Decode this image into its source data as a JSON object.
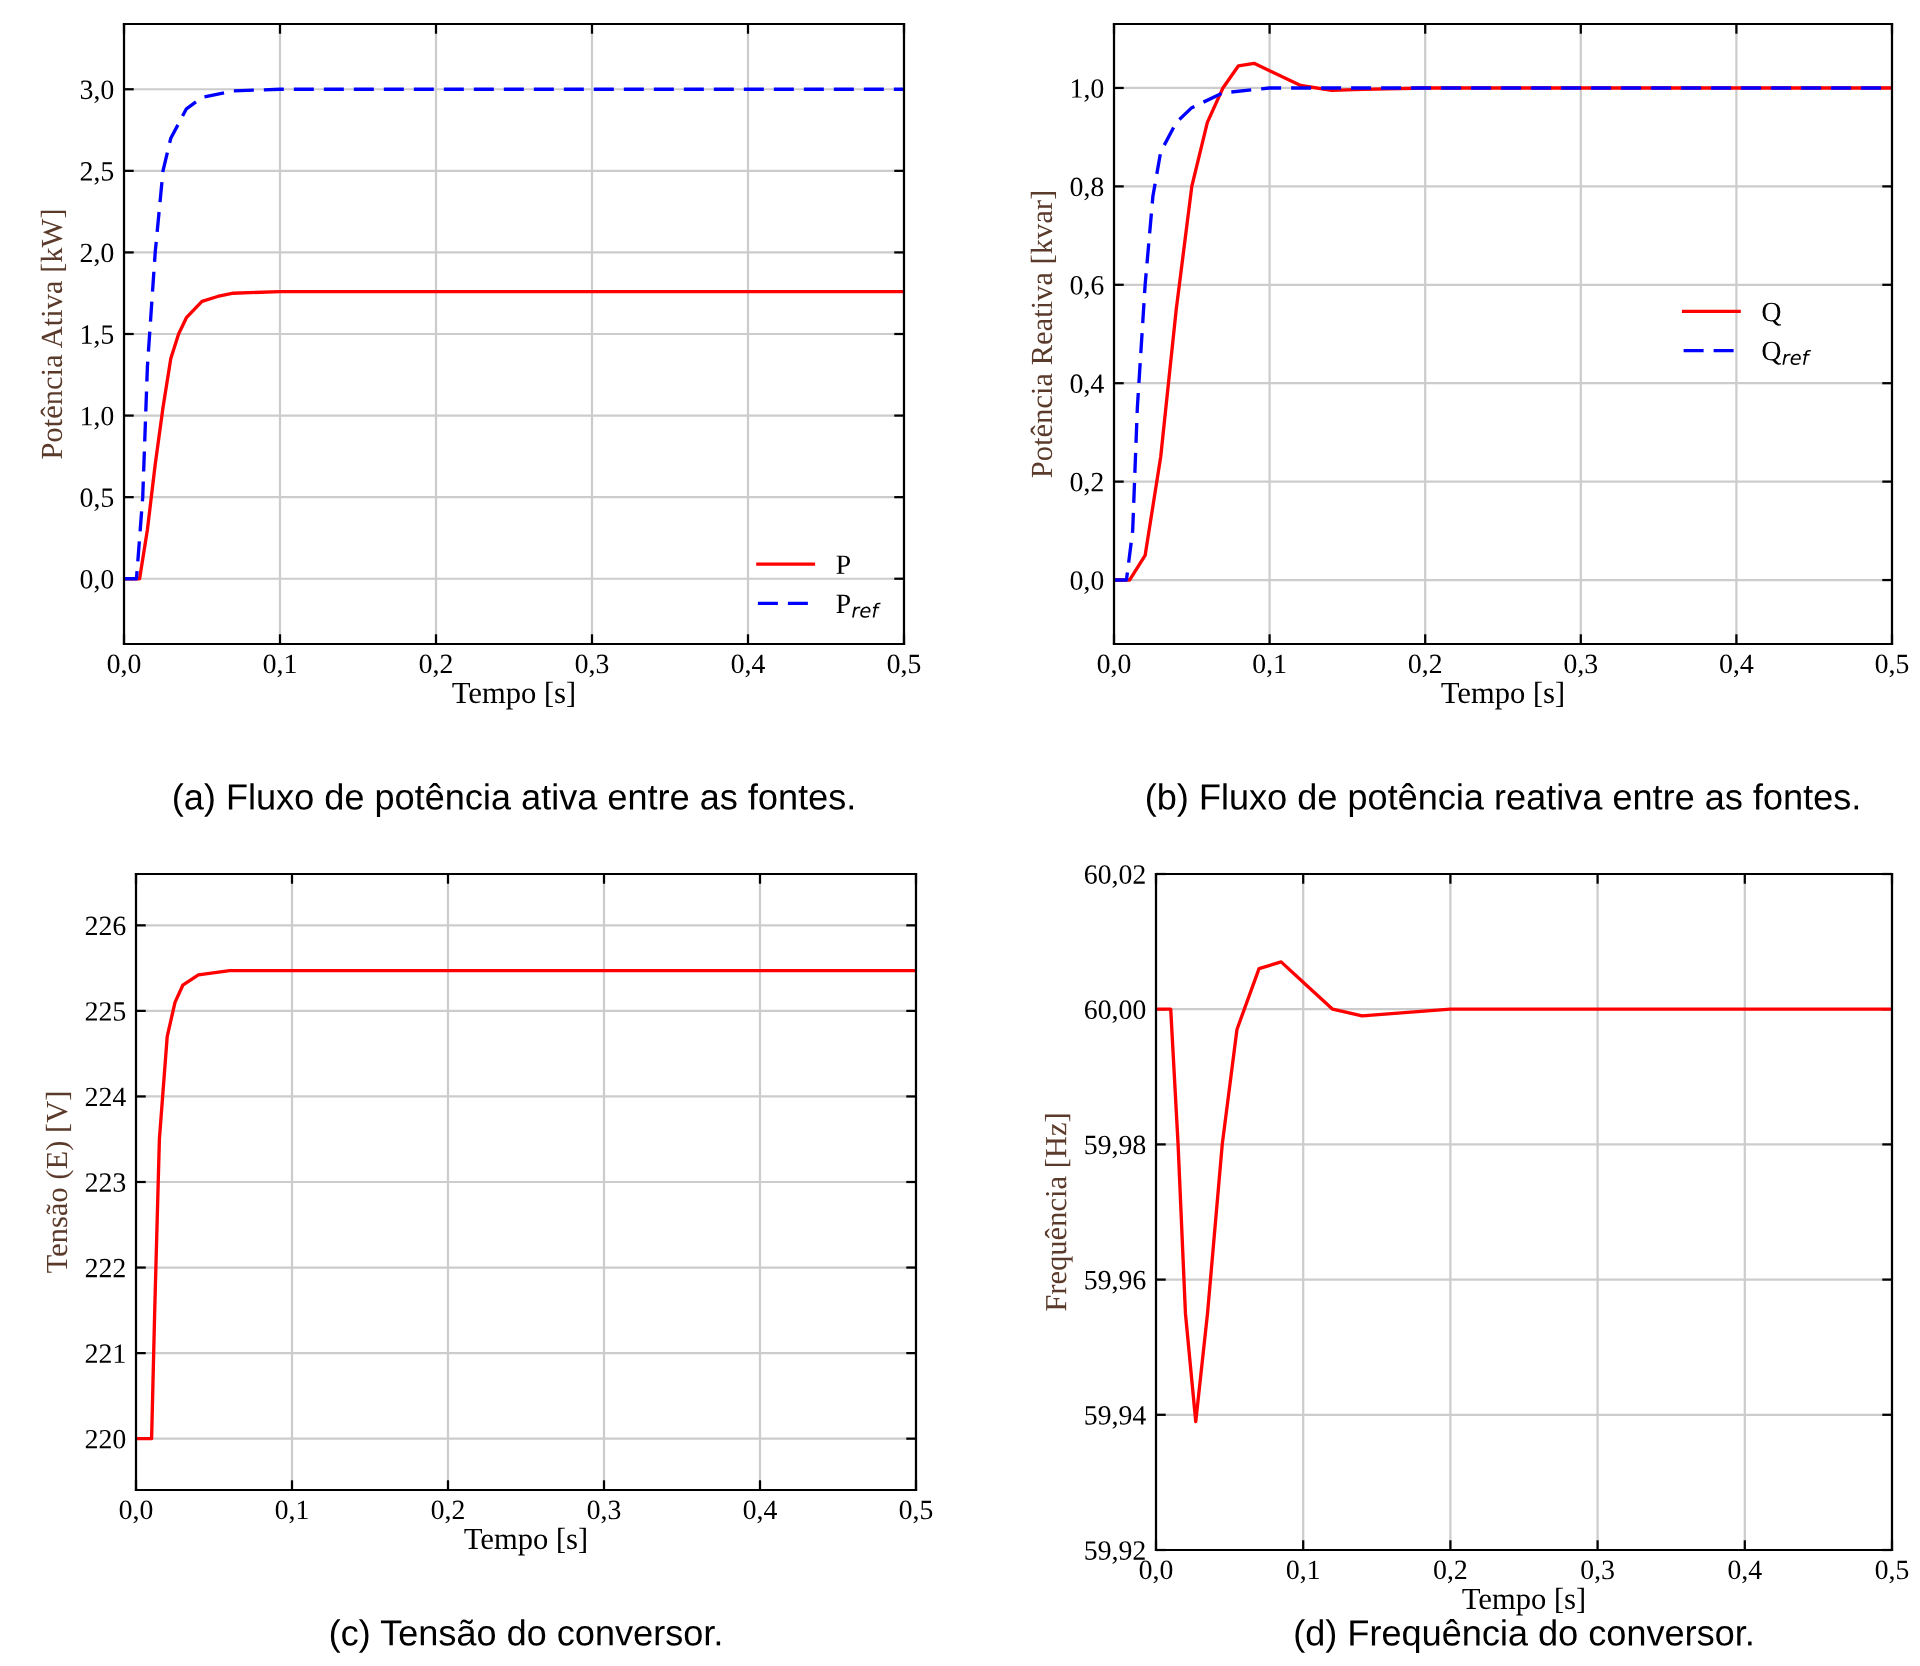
{
  "chart_data": [
    {
      "type": "line",
      "title": "(a) Fluxo de potência ativa entre as fontes.",
      "xlabel": "Tempo [s]",
      "ylabel": "Potência Ativa [kW]",
      "xlim": [
        0,
        0.5
      ],
      "ylim": [
        -0.4,
        3.4
      ],
      "xticks": [
        {
          "value": 0,
          "label": "0,0"
        },
        {
          "value": 0.1,
          "label": "0,1"
        },
        {
          "value": 0.2,
          "label": "0,2"
        },
        {
          "value": 0.3,
          "label": "0,3"
        },
        {
          "value": 0.4,
          "label": "0,4"
        },
        {
          "value": 0.5,
          "label": "0,5"
        }
      ],
      "yticks": [
        {
          "value": 0,
          "label": "0,0"
        },
        {
          "value": 0.5,
          "label": "0,5"
        },
        {
          "value": 1,
          "label": "1,0"
        },
        {
          "value": 1.5,
          "label": "1,5"
        },
        {
          "value": 2,
          "label": "2,0"
        },
        {
          "value": 2.5,
          "label": "2,5"
        },
        {
          "value": 3,
          "label": "3,0"
        }
      ],
      "grid": true,
      "legend": "bottom right",
      "series": [
        {
          "name": "P",
          "color": "#ff0000",
          "line_style": "solid",
          "x": [
            0,
            0.01,
            0.015,
            0.02,
            0.025,
            0.03,
            0.035,
            0.04,
            0.05,
            0.06,
            0.07,
            0.1,
            0.2,
            0.5
          ],
          "values": [
            0,
            0,
            0.3,
            0.7,
            1.05,
            1.35,
            1.5,
            1.6,
            1.7,
            1.73,
            1.75,
            1.76,
            1.76,
            1.76
          ]
        },
        {
          "name": "P$_{ref}$",
          "color": "#0000ff",
          "line_style": "dashed",
          "x": [
            0,
            0.008,
            0.012,
            0.015,
            0.02,
            0.025,
            0.03,
            0.04,
            0.05,
            0.07,
            0.1,
            0.5
          ],
          "values": [
            0,
            0,
            0.5,
            1.3,
            2.0,
            2.5,
            2.7,
            2.88,
            2.95,
            2.99,
            3.0,
            3.0
          ]
        }
      ]
    },
    {
      "type": "line",
      "title": "(b) Fluxo de potência reativa entre as fontes.",
      "xlabel": "Tempo [s]",
      "ylabel": "Potência Reativa [kvar]",
      "xlim": [
        0,
        0.5
      ],
      "ylim": [
        -0.13,
        1.13
      ],
      "xticks": [
        {
          "value": 0,
          "label": "0,0"
        },
        {
          "value": 0.1,
          "label": "0,1"
        },
        {
          "value": 0.2,
          "label": "0,2"
        },
        {
          "value": 0.3,
          "label": "0,3"
        },
        {
          "value": 0.4,
          "label": "0,4"
        },
        {
          "value": 0.5,
          "label": "0,5"
        }
      ],
      "yticks": [
        {
          "value": 0,
          "label": "0,0"
        },
        {
          "value": 0.2,
          "label": "0,2"
        },
        {
          "value": 0.4,
          "label": "0,4"
        },
        {
          "value": 0.6,
          "label": "0,6"
        },
        {
          "value": 0.8,
          "label": "0,8"
        },
        {
          "value": 1,
          "label": "1,0"
        }
      ],
      "grid": true,
      "legend": "center right",
      "series": [
        {
          "name": "Q",
          "color": "#ff0000",
          "line_style": "solid",
          "x": [
            0,
            0.01,
            0.02,
            0.03,
            0.04,
            0.05,
            0.06,
            0.07,
            0.08,
            0.09,
            0.1,
            0.12,
            0.14,
            0.16,
            0.2,
            0.5
          ],
          "values": [
            0,
            0,
            0.05,
            0.25,
            0.55,
            0.8,
            0.93,
            1.0,
            1.045,
            1.05,
            1.035,
            1.005,
            0.995,
            0.997,
            1.0,
            1.0
          ]
        },
        {
          "name": "Q$_{ref}$",
          "color": "#0000ff",
          "line_style": "dashed",
          "x": [
            0,
            0.008,
            0.012,
            0.015,
            0.02,
            0.025,
            0.03,
            0.04,
            0.05,
            0.07,
            0.1,
            0.5
          ],
          "values": [
            0,
            0,
            0.1,
            0.35,
            0.6,
            0.78,
            0.87,
            0.93,
            0.96,
            0.99,
            1.0,
            1.0
          ]
        }
      ]
    },
    {
      "type": "line",
      "title": "(c) Tensão do conversor.",
      "xlabel": "Tempo [s]",
      "ylabel": "Tensão (E) [V]",
      "xlim": [
        0,
        0.5
      ],
      "ylim": [
        219.4,
        226.6
      ],
      "xticks": [
        {
          "value": 0,
          "label": "0,0"
        },
        {
          "value": 0.1,
          "label": "0,1"
        },
        {
          "value": 0.2,
          "label": "0,2"
        },
        {
          "value": 0.3,
          "label": "0,3"
        },
        {
          "value": 0.4,
          "label": "0,4"
        },
        {
          "value": 0.5,
          "label": "0,5"
        }
      ],
      "yticks": [
        220,
        221,
        222,
        223,
        224,
        225,
        226
      ],
      "grid": true,
      "series": [
        {
          "color": "#ff0000",
          "line_style": "solid",
          "x": [
            0,
            0.01,
            0.012,
            0.015,
            0.02,
            0.025,
            0.03,
            0.04,
            0.06,
            0.1,
            0.5
          ],
          "values": [
            220,
            220,
            221.5,
            223.5,
            224.7,
            225.1,
            225.3,
            225.42,
            225.47,
            225.47,
            225.47
          ]
        }
      ]
    },
    {
      "type": "line",
      "title": "(d) Frequência do conversor.",
      "xlabel": "Tempo [s]",
      "ylabel": "Frequência [Hz]",
      "xlim": [
        0,
        0.5
      ],
      "ylim": [
        59.92,
        60.02
      ],
      "xticks": [
        {
          "value": 0,
          "label": "0,0"
        },
        {
          "value": 0.1,
          "label": "0,1"
        },
        {
          "value": 0.2,
          "label": "0,2"
        },
        {
          "value": 0.3,
          "label": "0,3"
        },
        {
          "value": 0.4,
          "label": "0,4"
        },
        {
          "value": 0.5,
          "label": "0,5"
        }
      ],
      "yticks": [
        {
          "value": 59.92,
          "label": "59,92"
        },
        {
          "value": 59.94,
          "label": "59,94"
        },
        {
          "value": 59.96,
          "label": "59,96"
        },
        {
          "value": 59.98,
          "label": "59,98"
        },
        {
          "value": 60,
          "label": "60,00"
        },
        {
          "value": 60.02,
          "label": "60,02"
        }
      ],
      "grid": true,
      "series": [
        {
          "color": "#ff0000",
          "line_style": "solid",
          "x": [
            0,
            0.01,
            0.015,
            0.02,
            0.027,
            0.035,
            0.045,
            0.055,
            0.07,
            0.085,
            0.1,
            0.12,
            0.14,
            0.2,
            0.5
          ],
          "values": [
            60,
            60,
            59.98,
            59.955,
            59.939,
            59.955,
            59.98,
            59.997,
            60.006,
            60.007,
            60.004,
            60.0,
            59.999,
            60.0,
            60.0
          ]
        }
      ]
    }
  ]
}
